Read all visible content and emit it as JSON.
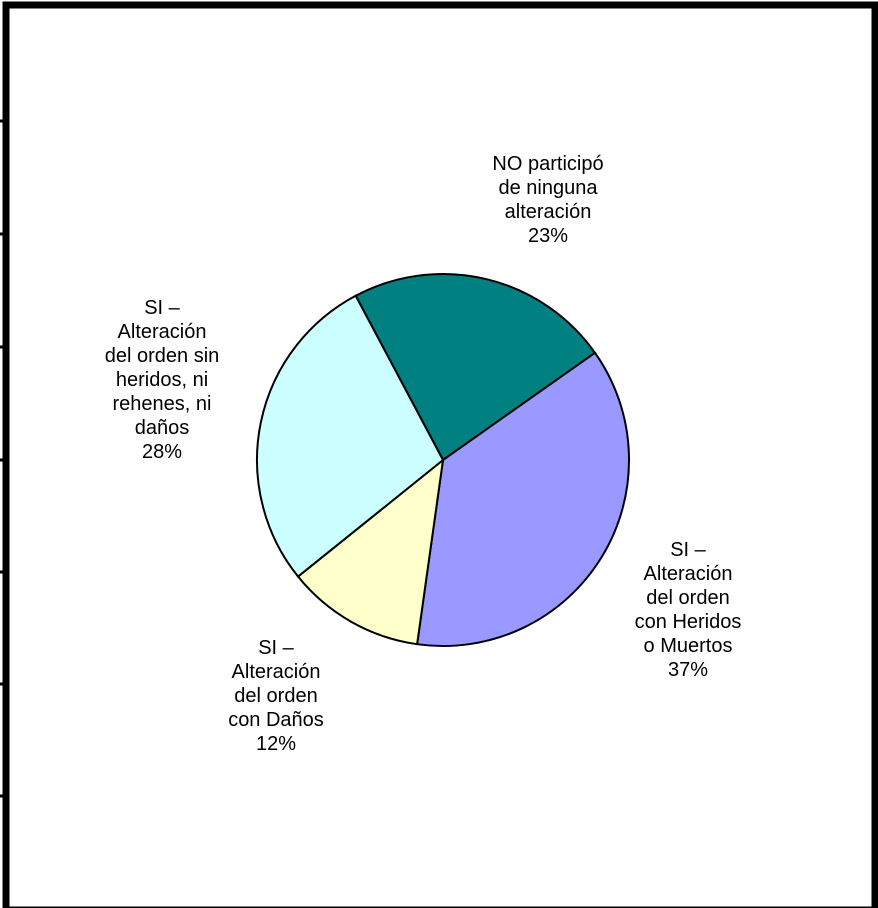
{
  "chart_data": {
    "type": "pie",
    "title": "",
    "start_angle_deg": -28,
    "slices": [
      {
        "label_lines": [
          "NO participó",
          "de ninguna",
          "alteración"
        ],
        "percent_label": "23%",
        "value": 23,
        "color": "#008080"
      },
      {
        "label_lines": [
          "SI –",
          "Alteración",
          "del orden",
          "con Heridos",
          "o Muertos"
        ],
        "percent_label": "37%",
        "value": 37,
        "color": "#9999FF"
      },
      {
        "label_lines": [
          "SI –",
          "Alteración",
          "del orden",
          "con Daños"
        ],
        "percent_label": "12%",
        "value": 12,
        "color": "#FFFFCC"
      },
      {
        "label_lines": [
          "SI –",
          "Alteración",
          "del orden sin",
          "heridos, ni",
          "rehenes, ni",
          "daños"
        ],
        "percent_label": "28%",
        "value": 28,
        "color": "#CCFFFF"
      }
    ]
  }
}
